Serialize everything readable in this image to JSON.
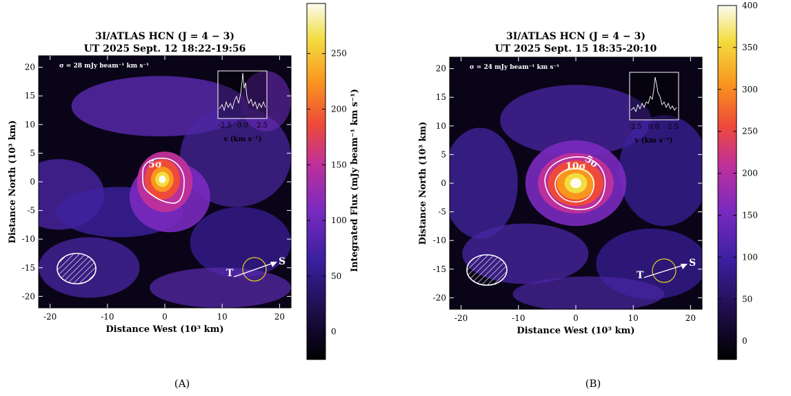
{
  "colors": {
    "background": "#ffffff",
    "contour": "#ffffff",
    "aperture": "#e6d21e",
    "arrow": "#ffffff"
  },
  "chart_data": [
    {
      "type": "heatmap",
      "panel_label": "(A)",
      "title_line1": "3I/ATLAS HCN (J = 4 − 3)",
      "title_line2": "UT 2025 Sept. 12 18:22-19:56",
      "xlabel": "Distance West (10³ km)",
      "ylabel": "Distance North (10³ km)",
      "xlim": [
        -22,
        22
      ],
      "ylim": [
        -22,
        22
      ],
      "xticks": [
        -20,
        -10,
        0,
        10,
        20
      ],
      "yticks": [
        -20,
        -15,
        -10,
        -5,
        0,
        5,
        10,
        15,
        20
      ],
      "sigma_label": "σ = 28 mJy beam⁻¹ km s⁻¹",
      "contour_labels": [
        "5σ"
      ],
      "peak": 295,
      "colorbar": {
        "label": "Integrated Flux (mJy beam⁻¹ km s⁻¹)",
        "min": -25,
        "max": 295,
        "ticks": [
          0,
          50,
          100,
          150,
          200,
          250
        ]
      },
      "inset": {
        "xlabel": "v (km s⁻¹)",
        "xticks": [
          "-2.5",
          "0.0",
          "2.5"
        ]
      },
      "markers": {
        "tail": "T",
        "sun": "S"
      }
    },
    {
      "type": "heatmap",
      "panel_label": "(B)",
      "title_line1": "3I/ATLAS HCN (J = 4 − 3)",
      "title_line2": "UT 2025 Sept. 15 18:35-20:10",
      "xlabel": "Distance West (10³ km)",
      "ylabel": "Distance North (10³ km)",
      "xlim": [
        -22,
        22
      ],
      "ylim": [
        -22,
        22
      ],
      "xticks": [
        -20,
        -10,
        0,
        10,
        20
      ],
      "yticks": [
        -20,
        -15,
        -10,
        -5,
        0,
        5,
        10,
        15,
        20
      ],
      "sigma_label": "σ = 24 mJy beam⁻¹ km s⁻¹",
      "contour_labels": [
        "10σ",
        "5σ"
      ],
      "peak": 400,
      "colorbar": {
        "label": "",
        "min": -22,
        "max": 400,
        "ticks": [
          0,
          50,
          100,
          150,
          200,
          250,
          300,
          350,
          400
        ]
      },
      "inset": {
        "xlabel": "v (km s⁻¹)",
        "xticks": [
          "-2.5",
          "0.0",
          "2.5"
        ]
      },
      "markers": {
        "tail": "T",
        "sun": "S"
      }
    }
  ]
}
